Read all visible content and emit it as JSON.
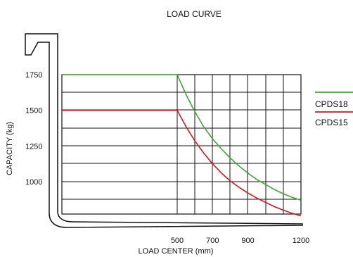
{
  "chart_data": {
    "type": "line",
    "title": "LOAD CURVE",
    "xlabel": "LOAD CENTER (mm)",
    "ylabel": "CAPACITY (kg)",
    "x_ticks": [
      500,
      700,
      900,
      1200
    ],
    "y_ticks": [
      1000,
      1250,
      1500,
      1750
    ],
    "grid": true,
    "legend_position": "right",
    "series": [
      {
        "name": "CPDS18",
        "color": "#3aaa35",
        "x": [
          0,
          500,
          550,
          600,
          650,
          700,
          750,
          800,
          850,
          900,
          950,
          1000,
          1050,
          1100,
          1150,
          1200
        ],
        "y": [
          1750,
          1750,
          1610,
          1490,
          1385,
          1300,
          1230,
          1165,
          1110,
          1060,
          1015,
          980,
          945,
          915,
          890,
          870
        ]
      },
      {
        "name": "CPDS15",
        "color": "#d8141d",
        "x": [
          0,
          500,
          550,
          600,
          650,
          700,
          750,
          800,
          850,
          900,
          950,
          1000,
          1050,
          1100,
          1150,
          1200
        ],
        "y": [
          1500,
          1500,
          1385,
          1285,
          1200,
          1125,
          1060,
          1005,
          960,
          920,
          885,
          855,
          825,
          800,
          778,
          760
        ]
      }
    ]
  }
}
